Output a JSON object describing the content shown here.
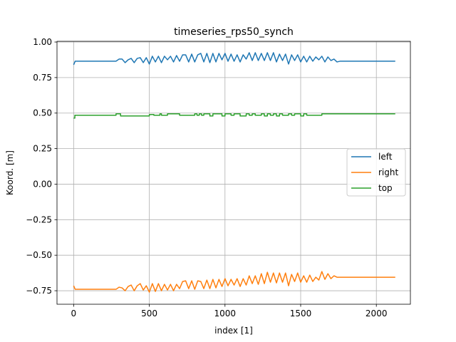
{
  "chart_data": {
    "type": "line",
    "title": "timeseries_rps50_synch",
    "xlabel": "index [1]",
    "ylabel": "Koord. [m]",
    "xlim": [
      -110,
      2225
    ],
    "ylim": [
      -0.845,
      1.005
    ],
    "xticks": [
      0,
      500,
      1000,
      1500,
      2000
    ],
    "xtick_labels": [
      "0",
      "500",
      "1000",
      "1500",
      "2000"
    ],
    "yticks": [
      1.0,
      0.75,
      0.5,
      0.25,
      0.0,
      -0.25,
      -0.5,
      -0.75
    ],
    "ytick_labels": [
      "1.00",
      "0.75",
      "0.50",
      "0.25",
      "0.00",
      "−0.25",
      "−0.50",
      "−0.75"
    ],
    "grid": true,
    "legend_position": "center-right",
    "series": [
      {
        "name": "left",
        "color": "#1f77b4",
        "x": [
          0,
          10,
          280,
          300,
          320,
          340,
          360,
          380,
          400,
          420,
          440,
          460,
          480,
          500,
          520,
          540,
          560,
          580,
          600,
          620,
          640,
          660,
          680,
          700,
          720,
          740,
          760,
          780,
          800,
          820,
          840,
          860,
          880,
          900,
          920,
          940,
          960,
          980,
          1000,
          1020,
          1040,
          1060,
          1080,
          1100,
          1120,
          1140,
          1160,
          1180,
          1200,
          1220,
          1240,
          1260,
          1280,
          1300,
          1320,
          1340,
          1360,
          1380,
          1400,
          1420,
          1440,
          1460,
          1480,
          1500,
          1520,
          1540,
          1560,
          1580,
          1600,
          1620,
          1640,
          1660,
          1680,
          1700,
          1720,
          1740,
          1760,
          2125
        ],
        "y": [
          0.84,
          0.865,
          0.865,
          0.88,
          0.88,
          0.855,
          0.875,
          0.885,
          0.855,
          0.885,
          0.89,
          0.855,
          0.89,
          0.845,
          0.9,
          0.86,
          0.9,
          0.855,
          0.9,
          0.875,
          0.9,
          0.86,
          0.905,
          0.865,
          0.91,
          0.91,
          0.86,
          0.915,
          0.86,
          0.91,
          0.92,
          0.86,
          0.92,
          0.855,
          0.92,
          0.86,
          0.92,
          0.875,
          0.92,
          0.865,
          0.915,
          0.865,
          0.91,
          0.86,
          0.91,
          0.88,
          0.925,
          0.87,
          0.925,
          0.87,
          0.92,
          0.87,
          0.925,
          0.87,
          0.925,
          0.86,
          0.915,
          0.87,
          0.915,
          0.845,
          0.91,
          0.87,
          0.91,
          0.86,
          0.9,
          0.86,
          0.9,
          0.865,
          0.895,
          0.875,
          0.9,
          0.86,
          0.895,
          0.87,
          0.88,
          0.86,
          0.865,
          0.865
        ]
      },
      {
        "name": "right",
        "color": "#ff7f0e",
        "x": [
          0,
          10,
          280,
          300,
          320,
          340,
          360,
          380,
          400,
          420,
          440,
          460,
          480,
          500,
          520,
          540,
          560,
          580,
          600,
          620,
          640,
          660,
          680,
          700,
          720,
          740,
          760,
          780,
          800,
          820,
          840,
          860,
          880,
          900,
          920,
          940,
          960,
          980,
          1000,
          1020,
          1040,
          1060,
          1080,
          1100,
          1120,
          1140,
          1160,
          1180,
          1200,
          1220,
          1240,
          1260,
          1280,
          1300,
          1320,
          1340,
          1360,
          1380,
          1400,
          1420,
          1440,
          1460,
          1480,
          1500,
          1520,
          1540,
          1560,
          1580,
          1600,
          1620,
          1640,
          1660,
          1680,
          1700,
          1720,
          1740,
          1760,
          2125
        ],
        "y": [
          -0.715,
          -0.74,
          -0.74,
          -0.725,
          -0.73,
          -0.75,
          -0.72,
          -0.71,
          -0.75,
          -0.715,
          -0.7,
          -0.745,
          -0.715,
          -0.76,
          -0.7,
          -0.755,
          -0.7,
          -0.75,
          -0.705,
          -0.745,
          -0.705,
          -0.75,
          -0.705,
          -0.735,
          -0.685,
          -0.68,
          -0.735,
          -0.68,
          -0.74,
          -0.68,
          -0.685,
          -0.735,
          -0.675,
          -0.735,
          -0.67,
          -0.73,
          -0.67,
          -0.72,
          -0.665,
          -0.715,
          -0.67,
          -0.71,
          -0.665,
          -0.72,
          -0.665,
          -0.71,
          -0.645,
          -0.7,
          -0.645,
          -0.705,
          -0.63,
          -0.7,
          -0.62,
          -0.69,
          -0.625,
          -0.695,
          -0.625,
          -0.69,
          -0.625,
          -0.715,
          -0.635,
          -0.685,
          -0.625,
          -0.69,
          -0.645,
          -0.69,
          -0.64,
          -0.685,
          -0.655,
          -0.675,
          -0.615,
          -0.67,
          -0.63,
          -0.665,
          -0.645,
          -0.655,
          -0.655,
          -0.655
        ]
      },
      {
        "name": "top",
        "color": "#2ca02c",
        "x": [
          0,
          8,
          8,
          280,
          280,
          310,
          310,
          350,
          350,
          500,
          500,
          530,
          530,
          570,
          570,
          580,
          580,
          620,
          620,
          700,
          700,
          800,
          800,
          815,
          815,
          830,
          830,
          845,
          845,
          860,
          860,
          900,
          900,
          920,
          920,
          980,
          980,
          1000,
          1000,
          1040,
          1040,
          1060,
          1060,
          1100,
          1100,
          1140,
          1140,
          1160,
          1160,
          1180,
          1180,
          1200,
          1200,
          1240,
          1240,
          1260,
          1260,
          1280,
          1280,
          1300,
          1300,
          1320,
          1320,
          1340,
          1340,
          1360,
          1360,
          1380,
          1380,
          1420,
          1420,
          1440,
          1440,
          1460,
          1460,
          1500,
          1500,
          1520,
          1520,
          1540,
          1540,
          1600,
          1600,
          1640,
          1640,
          1680,
          1680,
          2125
        ],
        "y": [
          0.465,
          0.465,
          0.485,
          0.485,
          0.495,
          0.495,
          0.48,
          0.48,
          0.48,
          0.48,
          0.49,
          0.49,
          0.485,
          0.485,
          0.495,
          0.495,
          0.485,
          0.485,
          0.495,
          0.495,
          0.485,
          0.485,
          0.495,
          0.495,
          0.485,
          0.485,
          0.495,
          0.495,
          0.485,
          0.485,
          0.495,
          0.495,
          0.48,
          0.48,
          0.495,
          0.495,
          0.48,
          0.48,
          0.495,
          0.495,
          0.485,
          0.485,
          0.495,
          0.495,
          0.48,
          0.48,
          0.495,
          0.495,
          0.485,
          0.485,
          0.495,
          0.495,
          0.485,
          0.485,
          0.495,
          0.495,
          0.48,
          0.48,
          0.495,
          0.495,
          0.485,
          0.485,
          0.495,
          0.495,
          0.48,
          0.48,
          0.495,
          0.495,
          0.485,
          0.485,
          0.495,
          0.495,
          0.485,
          0.485,
          0.495,
          0.495,
          0.48,
          0.48,
          0.495,
          0.495,
          0.485,
          0.485,
          0.485,
          0.485,
          0.495,
          0.495,
          0.495,
          0.495
        ]
      }
    ]
  }
}
